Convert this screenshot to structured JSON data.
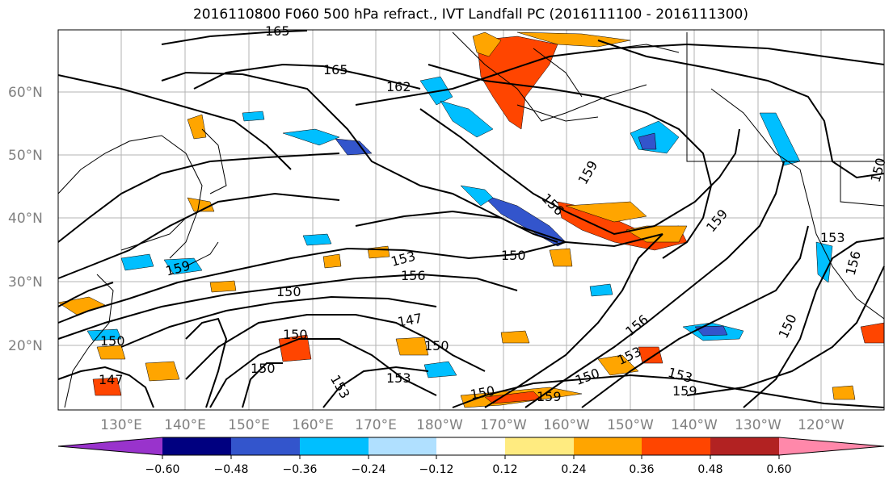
{
  "title": "2016110800 F060 500 hPa refract., IVT Landfall PC (2016111100 - 2016111300)",
  "lat_labels": [
    "60°N",
    "50°N",
    "40°N",
    "30°N",
    "20°N"
  ],
  "lon_labels": [
    "130°E",
    "140°E",
    "150°E",
    "160°E",
    "170°E",
    "180°W",
    "170°W",
    "160°W",
    "150°W",
    "140°W",
    "130°W",
    "120°W"
  ],
  "colorbar": {
    "colors": [
      "#9933cc",
      "#000080",
      "#3355cc",
      "#00bfff",
      "#b0e0ff",
      "#ffffff",
      "#ffeb80",
      "#ffa500",
      "#ff4500",
      "#b22222",
      "#ff88aa"
    ],
    "tick_labels": [
      "−0.60",
      "−0.48",
      "−0.36",
      "−0.24",
      "−0.12",
      "0.12",
      "0.24",
      "0.36",
      "0.48",
      "0.60"
    ]
  },
  "contour_labels": [
    "165",
    "165",
    "162",
    "159",
    "156",
    "159",
    "150",
    "153",
    "156",
    "150",
    "147",
    "150",
    "150",
    "159",
    "150",
    "153",
    "153",
    "150",
    "159",
    "150",
    "153",
    "156",
    "153",
    "159",
    "150",
    "147",
    "150",
    "150",
    "153",
    "156"
  ]
}
